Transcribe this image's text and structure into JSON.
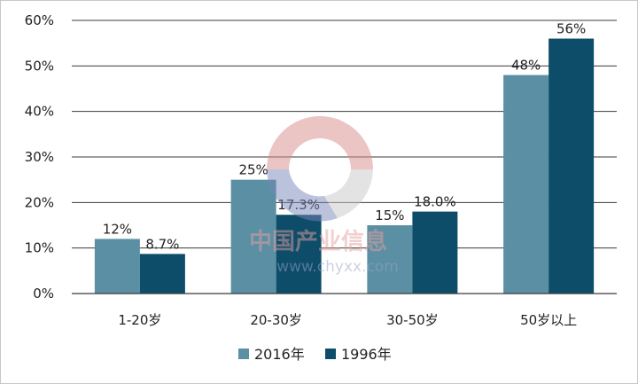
{
  "chart_data": {
    "type": "bar",
    "categories": [
      "1-20岁",
      "20-30岁",
      "30-50岁",
      "50岁以上"
    ],
    "series": [
      {
        "name": "2016年",
        "values": [
          12,
          25,
          15,
          48
        ],
        "labels": [
          "12%",
          "25%",
          "15%",
          "48%"
        ],
        "color": "#5b8fa3"
      },
      {
        "name": "1996年",
        "values": [
          8.7,
          17.3,
          18.0,
          56
        ],
        "labels": [
          "8.7%",
          "17.3%",
          "18.0%",
          "56%"
        ],
        "color": "#0d4d69"
      }
    ],
    "ylim": [
      0,
      60
    ],
    "yticks": [
      0,
      10,
      20,
      30,
      40,
      50,
      60
    ],
    "ytick_labels": [
      "0%",
      "10%",
      "20%",
      "30%",
      "40%",
      "50%",
      "60%"
    ],
    "grid": true,
    "legend": "bottom",
    "title": "",
    "xlabel": "",
    "ylabel": ""
  },
  "watermark": {
    "text": "中国产业信息",
    "url": "www.chyxx.com"
  }
}
